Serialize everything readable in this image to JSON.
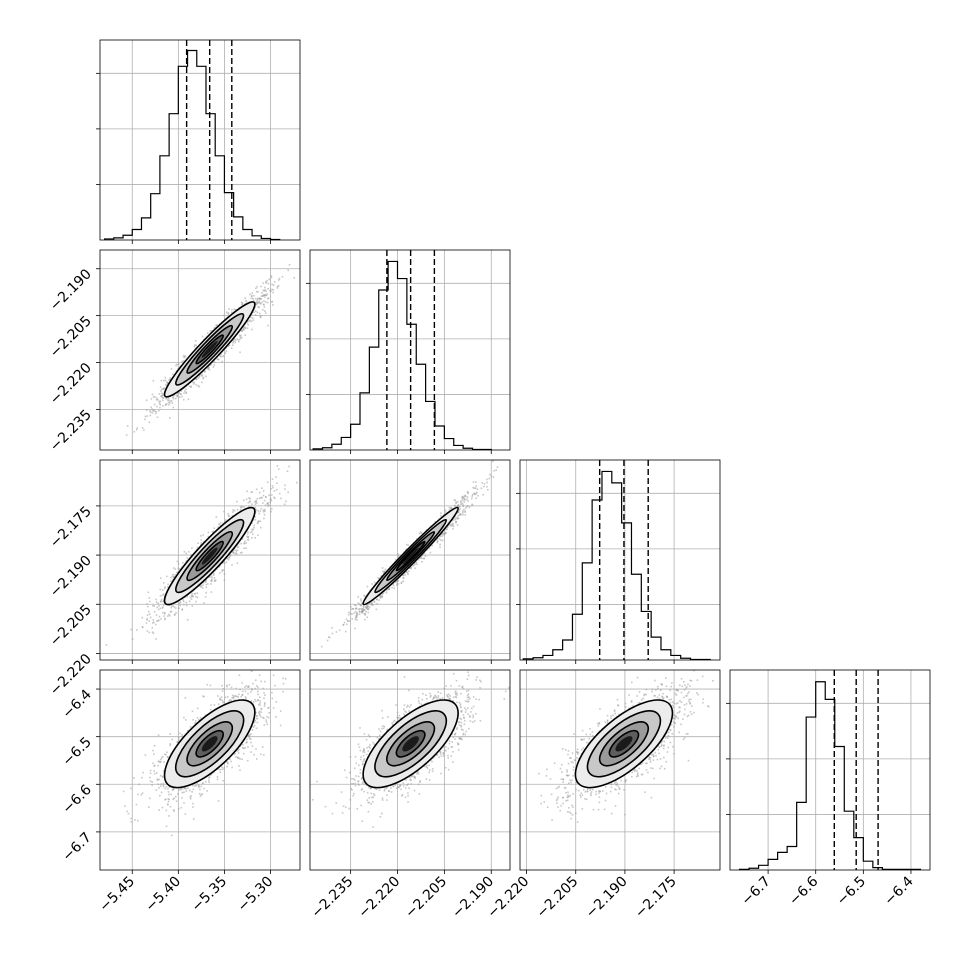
{
  "chart_data": {
    "type": "corner",
    "grid": true,
    "histogram_style": "step",
    "quantile_lines": "dashed",
    "colors": {
      "line": "#000000",
      "grid": "#b0b0b0",
      "points": "#9a9a9a",
      "density_dark": "#000000"
    },
    "parameters": [
      {
        "id": "p1",
        "xlim": [
          -5.485,
          -5.268
        ],
        "ticks": [
          -5.45,
          -5.4,
          -5.35,
          -5.3
        ],
        "tick_labels": [
          "−5.45",
          "−5.40",
          "−5.35",
          "−5.30"
        ],
        "quantiles": [
          -5.391,
          -5.366,
          -5.342
        ]
      },
      {
        "id": "p2",
        "xlim": [
          -2.248,
          -2.184
        ],
        "ticks": [
          -2.235,
          -2.22,
          -2.205,
          -2.19
        ],
        "tick_labels": [
          "−2.235",
          "−2.220",
          "−2.205",
          "−2.190"
        ],
        "quantiles": [
          -2.2234,
          -2.2158,
          -2.2082
        ]
      },
      {
        "id": "p3",
        "xlim": [
          -2.222,
          -2.161
        ],
        "ticks": [
          -2.22,
          -2.205,
          -2.19,
          -2.175
        ],
        "tick_labels": [
          "−2.220",
          "−2.205",
          "−2.190",
          "−2.175"
        ],
        "quantiles": [
          -2.1977,
          -2.1903,
          -2.1829
        ]
      },
      {
        "id": "p4",
        "xlim": [
          -6.78,
          -6.36
        ],
        "ticks": [
          -6.7,
          -6.6,
          -6.5,
          -6.4
        ],
        "tick_labels": [
          "−6.7",
          "−6.6",
          "−6.5",
          "−6.4"
        ],
        "quantiles": [
          -6.561,
          -6.515,
          -6.469
        ]
      }
    ],
    "histograms": [
      {
        "param": "p1",
        "edges_start": -5.48,
        "bin_width": 0.01,
        "counts": [
          2,
          4,
          9,
          20,
          42,
          88,
          160,
          240,
          330,
          360,
          330,
          240,
          160,
          90,
          44,
          20,
          8,
          3,
          1
        ],
        "ymax": 380
      },
      {
        "param": "p2",
        "edges_start": -2.247,
        "bin_width": 0.003,
        "counts": [
          2,
          4,
          10,
          22,
          45,
          100,
          180,
          280,
          330,
          300,
          220,
          150,
          85,
          42,
          20,
          8,
          3,
          1,
          1
        ],
        "ymax": 350
      },
      {
        "param": "p3",
        "edges_start": -2.221,
        "bin_width": 0.003,
        "counts": [
          2,
          4,
          8,
          18,
          35,
          80,
          170,
          280,
          330,
          310,
          240,
          150,
          85,
          40,
          18,
          8,
          3,
          1,
          1
        ],
        "ymax": 350
      },
      {
        "param": "p4",
        "edges_start": -6.76,
        "bin_width": 0.02,
        "counts": [
          1,
          3,
          8,
          18,
          30,
          40,
          115,
          260,
          320,
          290,
          210,
          100,
          55,
          15,
          4,
          1,
          1,
          1,
          1
        ],
        "ymax": 340
      }
    ],
    "pairs": [
      {
        "x": "p1",
        "y": "p2",
        "rho": 0.95
      },
      {
        "x": "p1",
        "y": "p3",
        "rho": 0.92
      },
      {
        "x": "p2",
        "y": "p3",
        "rho": 0.98
      },
      {
        "x": "p1",
        "y": "p4",
        "rho": 0.72
      },
      {
        "x": "p2",
        "y": "p4",
        "rho": 0.7
      },
      {
        "x": "p3",
        "y": "p4",
        "rho": 0.7
      }
    ]
  }
}
